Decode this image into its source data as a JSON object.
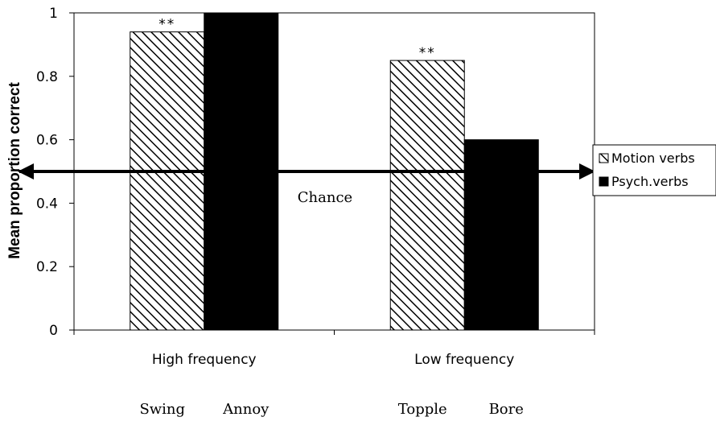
{
  "chart_data": {
    "type": "bar",
    "ylabel": "Mean proportion correct",
    "ylim": [
      0,
      1
    ],
    "yticks": [
      "0",
      "0.2",
      "0.4",
      "0.6",
      "0.8",
      "1"
    ],
    "categories": [
      "High frequency",
      "Low frequency"
    ],
    "series": [
      {
        "name": "Motion verbs",
        "values": [
          0.94,
          0.85
        ],
        "fill": "hatched",
        "verbs": [
          "Swing",
          "Topple"
        ],
        "annotations": [
          "**",
          "**"
        ]
      },
      {
        "name": "Psych.verbs",
        "values": [
          1.0,
          0.6
        ],
        "fill": "solid",
        "verbs": [
          "Annoy",
          "Bore"
        ],
        "annotations": [
          "",
          ""
        ]
      }
    ],
    "reference_line": {
      "value": 0.5,
      "label": "Chance",
      "style": "double-arrow"
    },
    "legend_position": "right",
    "grid": false
  }
}
